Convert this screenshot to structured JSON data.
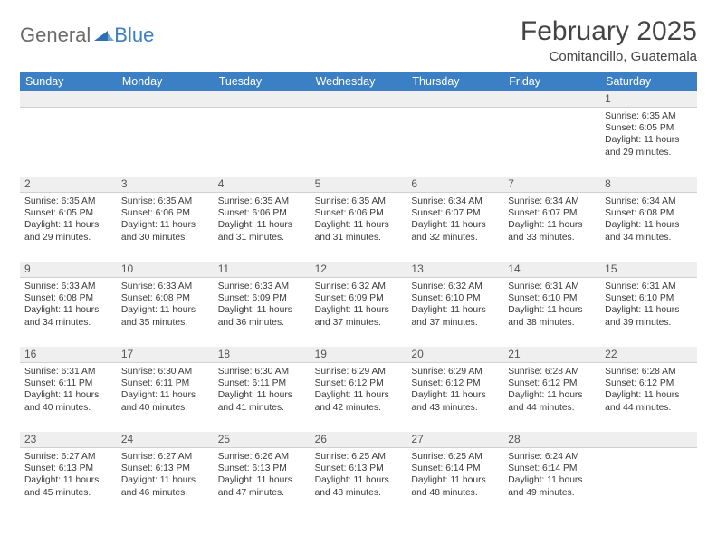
{
  "logo": {
    "word1": "General",
    "word2": "Blue"
  },
  "title": "February 2025",
  "location": "Comitancillo, Guatemala",
  "colors": {
    "header_bg": "#3b7fc4",
    "header_text": "#ffffff",
    "daynum_bg": "#efefef",
    "page_bg": "#ffffff",
    "text": "#3a3a3a",
    "divider": "#d0d0d0"
  },
  "weekdays": [
    "Sunday",
    "Monday",
    "Tuesday",
    "Wednesday",
    "Thursday",
    "Friday",
    "Saturday"
  ],
  "weeks": [
    {
      "nums": [
        "",
        "",
        "",
        "",
        "",
        "",
        "1"
      ],
      "cells": [
        {
          "sunrise": "",
          "sunset": "",
          "daylight": ""
        },
        {
          "sunrise": "",
          "sunset": "",
          "daylight": ""
        },
        {
          "sunrise": "",
          "sunset": "",
          "daylight": ""
        },
        {
          "sunrise": "",
          "sunset": "",
          "daylight": ""
        },
        {
          "sunrise": "",
          "sunset": "",
          "daylight": ""
        },
        {
          "sunrise": "",
          "sunset": "",
          "daylight": ""
        },
        {
          "sunrise": "Sunrise: 6:35 AM",
          "sunset": "Sunset: 6:05 PM",
          "daylight": "Daylight: 11 hours and 29 minutes."
        }
      ]
    },
    {
      "nums": [
        "2",
        "3",
        "4",
        "5",
        "6",
        "7",
        "8"
      ],
      "cells": [
        {
          "sunrise": "Sunrise: 6:35 AM",
          "sunset": "Sunset: 6:05 PM",
          "daylight": "Daylight: 11 hours and 29 minutes."
        },
        {
          "sunrise": "Sunrise: 6:35 AM",
          "sunset": "Sunset: 6:06 PM",
          "daylight": "Daylight: 11 hours and 30 minutes."
        },
        {
          "sunrise": "Sunrise: 6:35 AM",
          "sunset": "Sunset: 6:06 PM",
          "daylight": "Daylight: 11 hours and 31 minutes."
        },
        {
          "sunrise": "Sunrise: 6:35 AM",
          "sunset": "Sunset: 6:06 PM",
          "daylight": "Daylight: 11 hours and 31 minutes."
        },
        {
          "sunrise": "Sunrise: 6:34 AM",
          "sunset": "Sunset: 6:07 PM",
          "daylight": "Daylight: 11 hours and 32 minutes."
        },
        {
          "sunrise": "Sunrise: 6:34 AM",
          "sunset": "Sunset: 6:07 PM",
          "daylight": "Daylight: 11 hours and 33 minutes."
        },
        {
          "sunrise": "Sunrise: 6:34 AM",
          "sunset": "Sunset: 6:08 PM",
          "daylight": "Daylight: 11 hours and 34 minutes."
        }
      ]
    },
    {
      "nums": [
        "9",
        "10",
        "11",
        "12",
        "13",
        "14",
        "15"
      ],
      "cells": [
        {
          "sunrise": "Sunrise: 6:33 AM",
          "sunset": "Sunset: 6:08 PM",
          "daylight": "Daylight: 11 hours and 34 minutes."
        },
        {
          "sunrise": "Sunrise: 6:33 AM",
          "sunset": "Sunset: 6:08 PM",
          "daylight": "Daylight: 11 hours and 35 minutes."
        },
        {
          "sunrise": "Sunrise: 6:33 AM",
          "sunset": "Sunset: 6:09 PM",
          "daylight": "Daylight: 11 hours and 36 minutes."
        },
        {
          "sunrise": "Sunrise: 6:32 AM",
          "sunset": "Sunset: 6:09 PM",
          "daylight": "Daylight: 11 hours and 37 minutes."
        },
        {
          "sunrise": "Sunrise: 6:32 AM",
          "sunset": "Sunset: 6:10 PM",
          "daylight": "Daylight: 11 hours and 37 minutes."
        },
        {
          "sunrise": "Sunrise: 6:31 AM",
          "sunset": "Sunset: 6:10 PM",
          "daylight": "Daylight: 11 hours and 38 minutes."
        },
        {
          "sunrise": "Sunrise: 6:31 AM",
          "sunset": "Sunset: 6:10 PM",
          "daylight": "Daylight: 11 hours and 39 minutes."
        }
      ]
    },
    {
      "nums": [
        "16",
        "17",
        "18",
        "19",
        "20",
        "21",
        "22"
      ],
      "cells": [
        {
          "sunrise": "Sunrise: 6:31 AM",
          "sunset": "Sunset: 6:11 PM",
          "daylight": "Daylight: 11 hours and 40 minutes."
        },
        {
          "sunrise": "Sunrise: 6:30 AM",
          "sunset": "Sunset: 6:11 PM",
          "daylight": "Daylight: 11 hours and 40 minutes."
        },
        {
          "sunrise": "Sunrise: 6:30 AM",
          "sunset": "Sunset: 6:11 PM",
          "daylight": "Daylight: 11 hours and 41 minutes."
        },
        {
          "sunrise": "Sunrise: 6:29 AM",
          "sunset": "Sunset: 6:12 PM",
          "daylight": "Daylight: 11 hours and 42 minutes."
        },
        {
          "sunrise": "Sunrise: 6:29 AM",
          "sunset": "Sunset: 6:12 PM",
          "daylight": "Daylight: 11 hours and 43 minutes."
        },
        {
          "sunrise": "Sunrise: 6:28 AM",
          "sunset": "Sunset: 6:12 PM",
          "daylight": "Daylight: 11 hours and 44 minutes."
        },
        {
          "sunrise": "Sunrise: 6:28 AM",
          "sunset": "Sunset: 6:12 PM",
          "daylight": "Daylight: 11 hours and 44 minutes."
        }
      ]
    },
    {
      "nums": [
        "23",
        "24",
        "25",
        "26",
        "27",
        "28",
        ""
      ],
      "cells": [
        {
          "sunrise": "Sunrise: 6:27 AM",
          "sunset": "Sunset: 6:13 PM",
          "daylight": "Daylight: 11 hours and 45 minutes."
        },
        {
          "sunrise": "Sunrise: 6:27 AM",
          "sunset": "Sunset: 6:13 PM",
          "daylight": "Daylight: 11 hours and 46 minutes."
        },
        {
          "sunrise": "Sunrise: 6:26 AM",
          "sunset": "Sunset: 6:13 PM",
          "daylight": "Daylight: 11 hours and 47 minutes."
        },
        {
          "sunrise": "Sunrise: 6:25 AM",
          "sunset": "Sunset: 6:13 PM",
          "daylight": "Daylight: 11 hours and 48 minutes."
        },
        {
          "sunrise": "Sunrise: 6:25 AM",
          "sunset": "Sunset: 6:14 PM",
          "daylight": "Daylight: 11 hours and 48 minutes."
        },
        {
          "sunrise": "Sunrise: 6:24 AM",
          "sunset": "Sunset: 6:14 PM",
          "daylight": "Daylight: 11 hours and 49 minutes."
        },
        {
          "sunrise": "",
          "sunset": "",
          "daylight": ""
        }
      ]
    }
  ]
}
